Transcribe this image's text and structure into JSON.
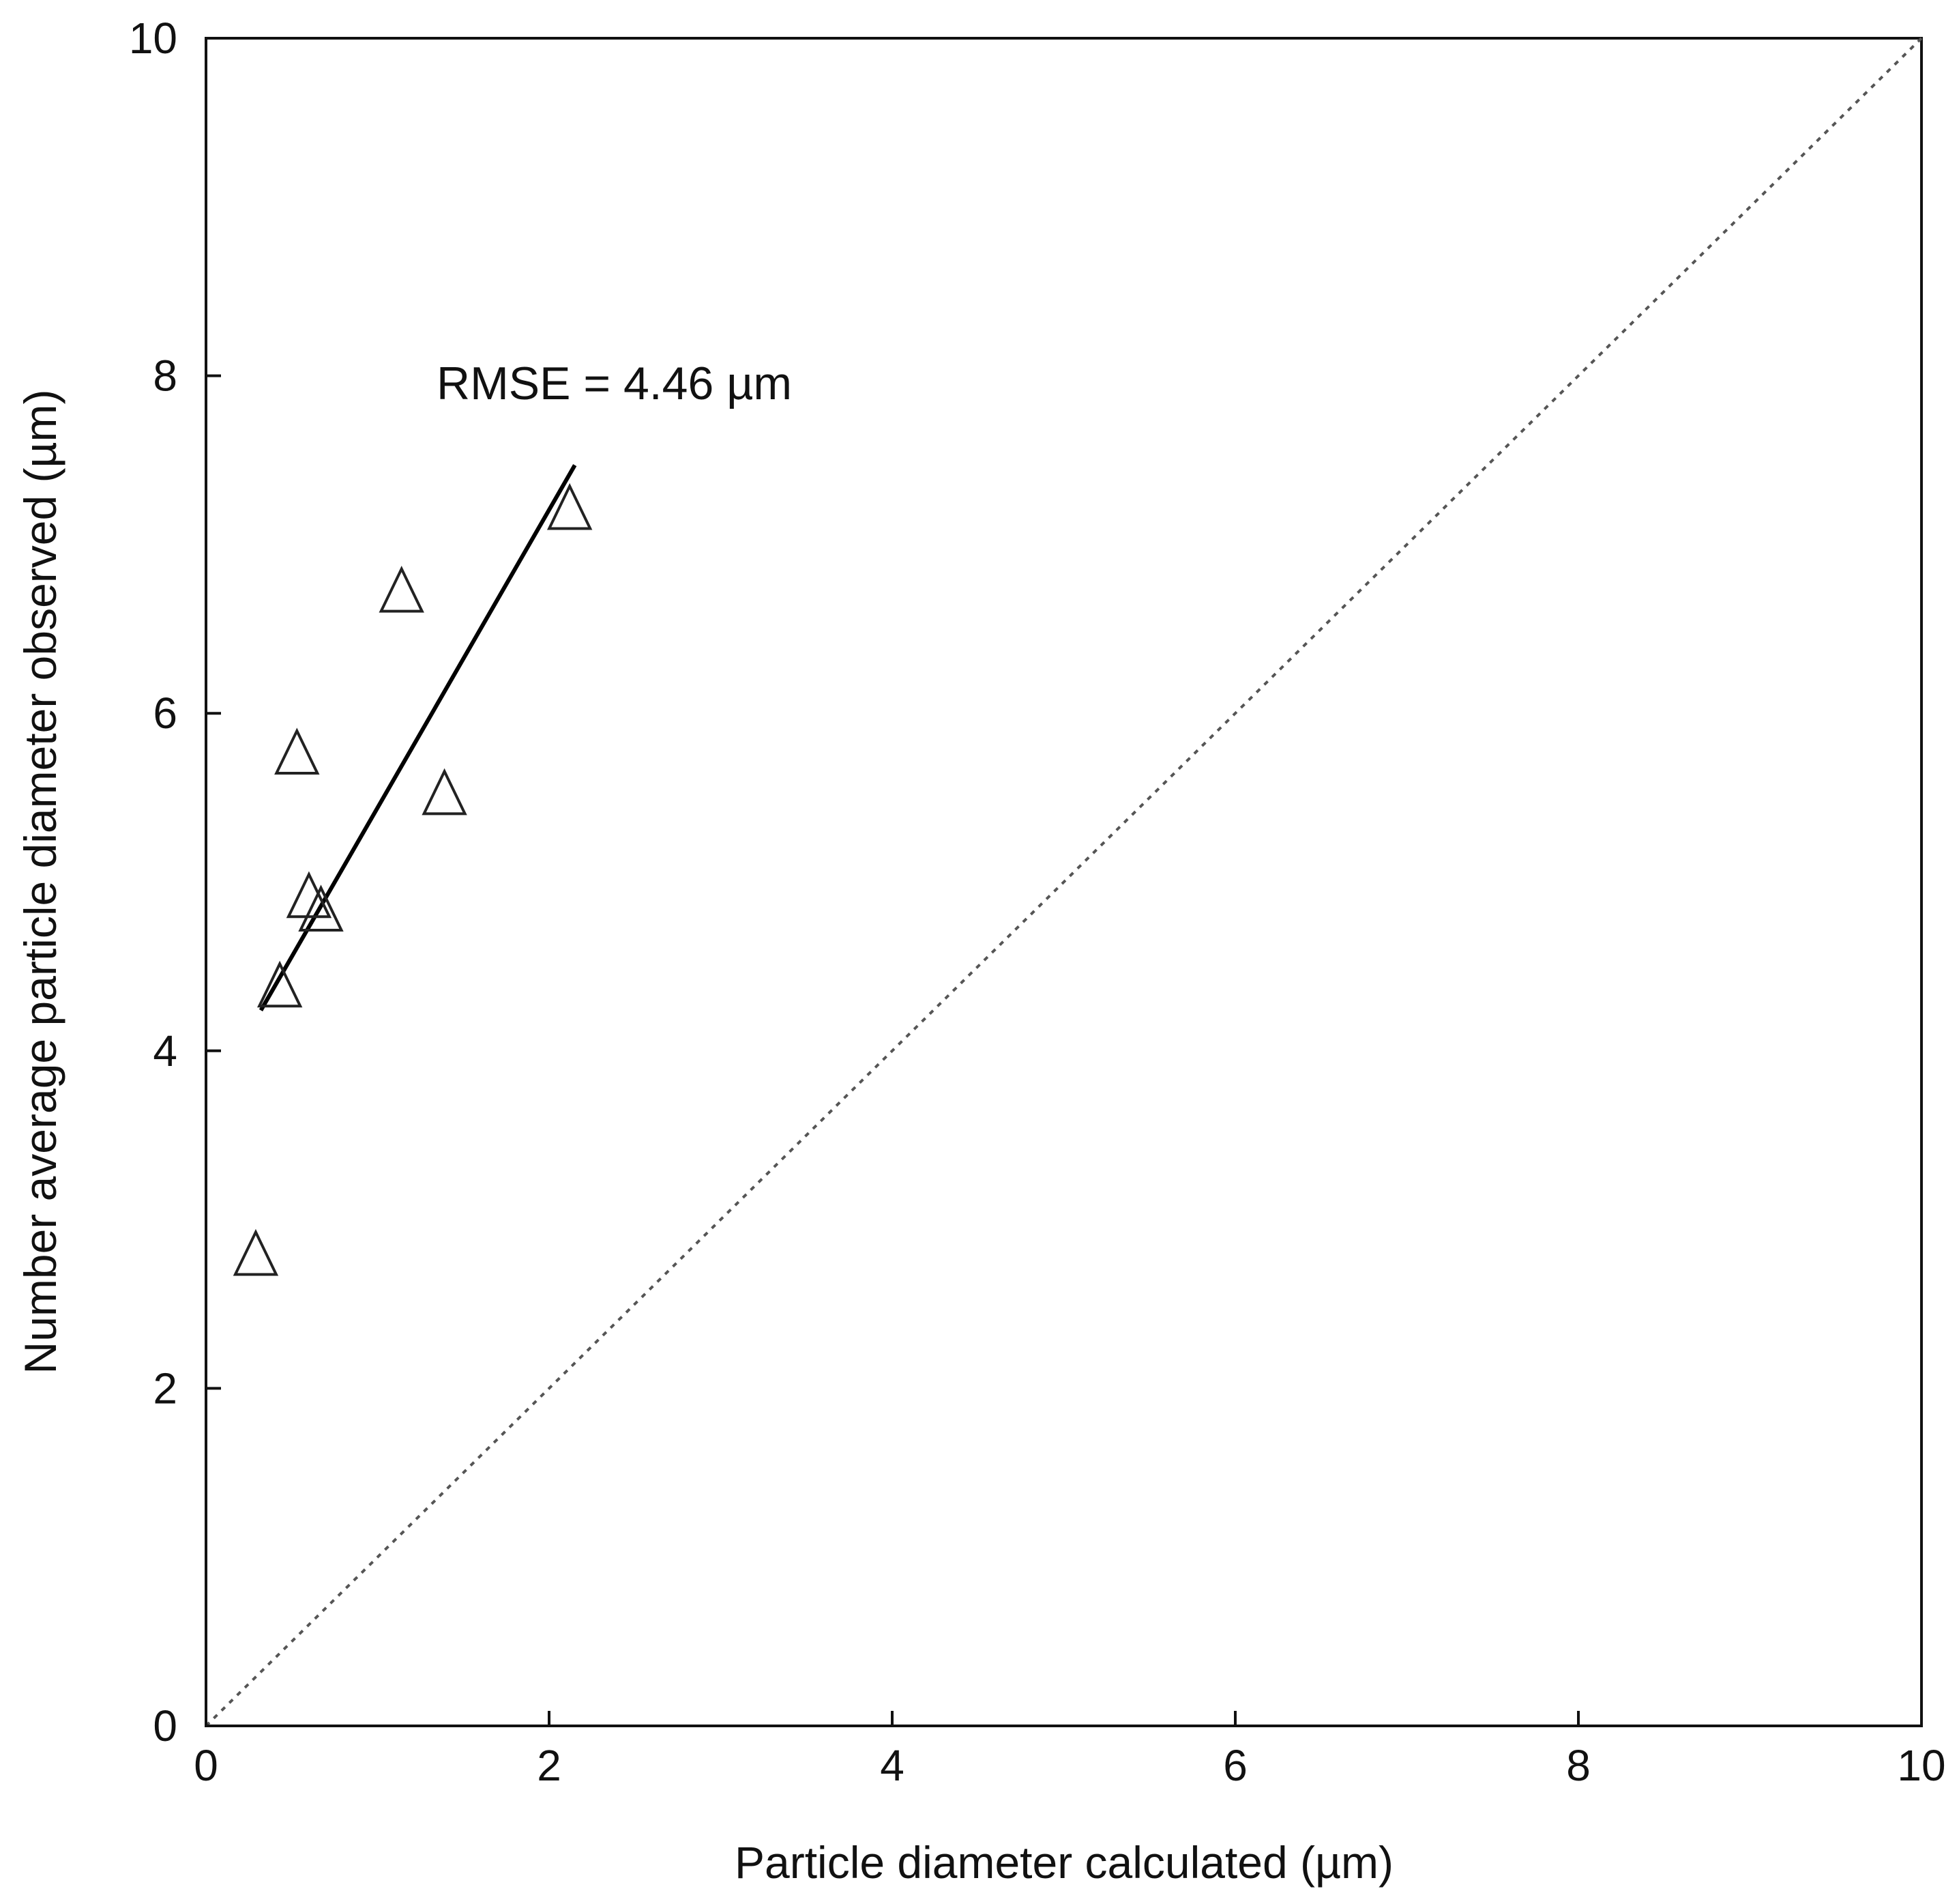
{
  "chart_data": {
    "type": "scatter",
    "title": "",
    "xlabel": "Particle diameter calculated (µm)",
    "ylabel": "Number average particle diameter observed  (µm)",
    "xlim": [
      0,
      10
    ],
    "ylim": [
      0,
      10
    ],
    "x_ticks": [
      "0",
      "2",
      "4",
      "6",
      "8",
      "10"
    ],
    "y_ticks": [
      "0",
      "2",
      "4",
      "6",
      "8",
      "10"
    ],
    "grid": false,
    "legend": "none",
    "marker": "open-triangle",
    "points": [
      {
        "x": 0.29,
        "y": 2.78
      },
      {
        "x": 0.43,
        "y": 4.37
      },
      {
        "x": 0.53,
        "y": 5.75
      },
      {
        "x": 0.6,
        "y": 4.9
      },
      {
        "x": 0.67,
        "y": 4.82
      },
      {
        "x": 1.14,
        "y": 6.71
      },
      {
        "x": 1.39,
        "y": 5.51
      },
      {
        "x": 2.12,
        "y": 7.2
      }
    ],
    "trendline": {
      "x": [
        0.32,
        2.15
      ],
      "y": [
        4.24,
        7.47
      ]
    },
    "reference_line": {
      "x": [
        0,
        10
      ],
      "y": [
        0,
        10
      ],
      "style": "dotted"
    },
    "annotation": "RMSE = 4.46 µm",
    "colors": {
      "axis": "#111111",
      "marker": "#222222",
      "trendline": "#000000",
      "reference": "#555555"
    }
  }
}
